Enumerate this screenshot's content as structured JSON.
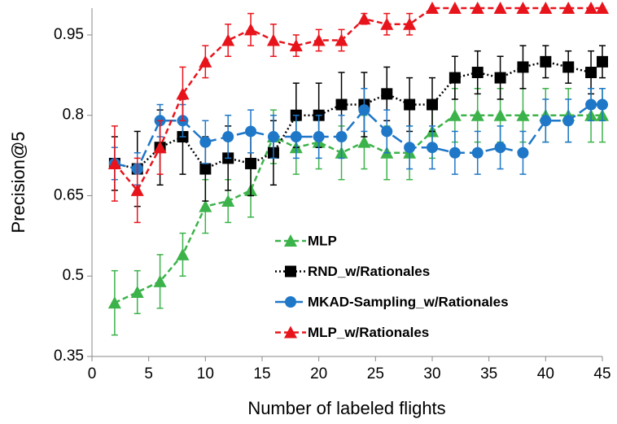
{
  "chart_data": {
    "type": "line",
    "xlabel": "Number of labeled flights",
    "ylabel": "Precision@5",
    "x": [
      2,
      4,
      6,
      8,
      10,
      12,
      14,
      16,
      18,
      20,
      22,
      24,
      26,
      28,
      30,
      32,
      34,
      36,
      38,
      40,
      42,
      44,
      45
    ],
    "xlim": [
      0,
      45
    ],
    "xticks": [
      0,
      5,
      10,
      15,
      20,
      25,
      30,
      35,
      40,
      45
    ],
    "ylim": [
      0.35,
      1.0
    ],
    "yticks": [
      0.35,
      0.5,
      0.65,
      0.8,
      0.95
    ],
    "grid": false,
    "legend": "center",
    "series": [
      {
        "name": "MLP",
        "color": "#3cb34a",
        "marker": "triangle",
        "line_style": "dashed",
        "values": [
          0.45,
          0.47,
          0.49,
          0.54,
          0.63,
          0.64,
          0.66,
          0.76,
          0.74,
          0.75,
          0.73,
          0.75,
          0.73,
          0.73,
          0.77,
          0.8,
          0.8,
          0.8,
          0.8,
          0.8,
          0.8,
          0.8,
          0.8
        ],
        "errors": [
          0.06,
          0.04,
          0.05,
          0.04,
          0.05,
          0.04,
          0.05,
          0.05,
          0.05,
          0.05,
          0.05,
          0.05,
          0.05,
          0.05,
          0.05,
          0.05,
          0.05,
          0.05,
          0.05,
          0.05,
          0.05,
          0.05,
          0.05
        ]
      },
      {
        "name": "RND_w/Rationales",
        "color": "#000000",
        "marker": "square",
        "line_style": "dotted",
        "values": [
          0.71,
          0.7,
          0.74,
          0.76,
          0.7,
          0.72,
          0.71,
          0.73,
          0.8,
          0.8,
          0.82,
          0.82,
          0.84,
          0.82,
          0.82,
          0.87,
          0.88,
          0.87,
          0.89,
          0.9,
          0.89,
          0.88,
          0.9
        ],
        "errors": [
          0.05,
          0.07,
          0.07,
          0.07,
          0.06,
          0.06,
          0.06,
          0.06,
          0.06,
          0.06,
          0.06,
          0.06,
          0.05,
          0.05,
          0.05,
          0.04,
          0.04,
          0.04,
          0.04,
          0.03,
          0.03,
          0.04,
          0.03
        ]
      },
      {
        "name": "MKAD-Sampling_w/Rationales",
        "color": "#1f77c8",
        "marker": "circle",
        "line_style": "long-dashed",
        "values": [
          0.71,
          0.7,
          0.79,
          0.79,
          0.75,
          0.76,
          0.77,
          0.76,
          0.76,
          0.76,
          0.76,
          0.81,
          0.77,
          0.74,
          0.74,
          0.73,
          0.73,
          0.74,
          0.73,
          0.79,
          0.79,
          0.82,
          0.82
        ],
        "errors": [
          0.03,
          0.03,
          0.03,
          0.03,
          0.04,
          0.04,
          0.04,
          0.04,
          0.04,
          0.04,
          0.04,
          0.04,
          0.04,
          0.04,
          0.04,
          0.04,
          0.04,
          0.04,
          0.04,
          0.04,
          0.04,
          0.03,
          0.03
        ]
      },
      {
        "name": "MLP_w/Rationales",
        "color": "#e8141c",
        "marker": "triangle",
        "line_style": "dashed",
        "values": [
          0.71,
          0.66,
          0.74,
          0.84,
          0.9,
          0.94,
          0.96,
          0.94,
          0.93,
          0.94,
          0.94,
          0.98,
          0.97,
          0.97,
          1.0,
          1.0,
          1.0,
          1.0,
          1.0,
          1.0,
          1.0,
          1.0,
          1.0
        ],
        "errors": [
          0.07,
          0.06,
          0.05,
          0.05,
          0.03,
          0.03,
          0.03,
          0.03,
          0.02,
          0.02,
          0.02,
          0.01,
          0.02,
          0.02,
          0,
          0,
          0,
          0,
          0,
          0,
          0,
          0,
          0
        ]
      }
    ]
  }
}
